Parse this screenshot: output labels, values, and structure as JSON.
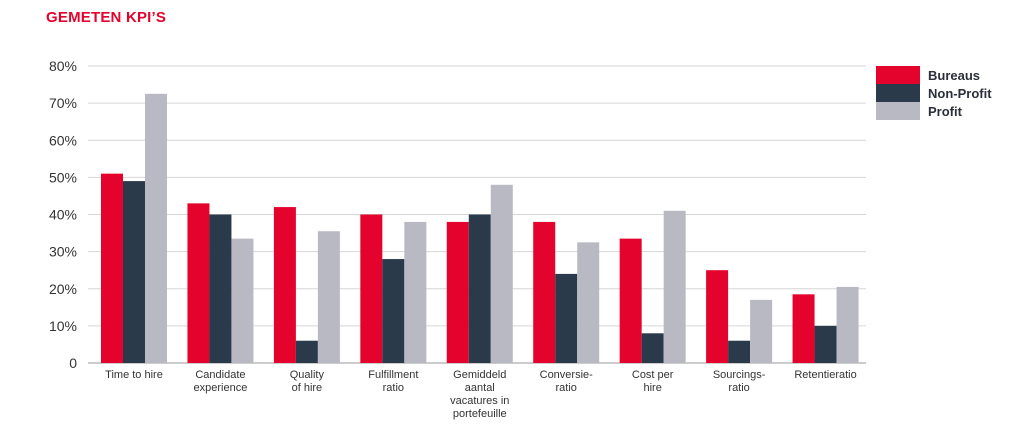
{
  "title": "GEMETEN KPI’S",
  "colors": {
    "accent": "#e3032d",
    "bureaus": "#e3032d",
    "nonprofit": "#2b3a4a",
    "profit": "#b9b9c3"
  },
  "chart_data": {
    "type": "bar",
    "title": "GEMETEN KPI’S",
    "categories": [
      [
        "Time to hire"
      ],
      [
        "Candidate",
        "experience"
      ],
      [
        "Quality",
        "of hire"
      ],
      [
        "Fulfillment",
        "ratio"
      ],
      [
        "Gemiddeld",
        "aantal",
        "vacatures in",
        "portefeuille"
      ],
      [
        "Conversie-",
        "ratio"
      ],
      [
        "Cost per",
        "hire"
      ],
      [
        "Sourcings-",
        "ratio"
      ],
      [
        "Retentieratio"
      ]
    ],
    "series": [
      {
        "name": "Bureaus",
        "color": "#e3032d",
        "values": [
          51,
          43,
          42,
          40,
          38,
          38,
          33.5,
          25,
          18.5
        ]
      },
      {
        "name": "Non-Profit",
        "color": "#2b3a4a",
        "values": [
          49,
          40,
          6,
          28,
          40,
          24,
          8,
          6,
          10
        ]
      },
      {
        "name": "Profit",
        "color": "#b9b9c3",
        "values": [
          72.5,
          33.5,
          35.5,
          38,
          48,
          32.5,
          41,
          17,
          20.5
        ]
      }
    ],
    "ylim": [
      0,
      80
    ],
    "yticks": [
      "0",
      "10%",
      "20%",
      "30%",
      "40%",
      "50%",
      "60%",
      "70%",
      "80%"
    ],
    "grid": true,
    "legend_position": "right"
  }
}
